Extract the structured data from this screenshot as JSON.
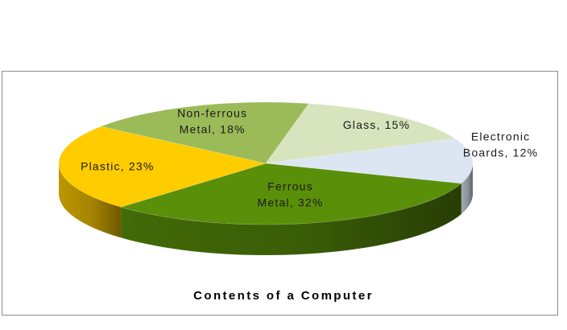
{
  "chart_data": {
    "type": "pie",
    "title": "Contents of a Computer",
    "slices": [
      {
        "label": "Electronic Boards, 12%",
        "name": "Electronic Boards",
        "value": 12,
        "color": "#dce6f2"
      },
      {
        "label": "Ferrous Metal, 32%",
        "name": "Ferrous Metal",
        "value": 32,
        "color": "#5a8f0a"
      },
      {
        "label": "Plastic, 23%",
        "name": "Plastic",
        "value": 23,
        "color": "#ffcc00"
      },
      {
        "label": "Non-ferrous Metal, 18%",
        "name": "Non-ferrous Metal",
        "value": 18,
        "color": "#9bbb59"
      },
      {
        "label": "Glass, 15%",
        "name": "Glass",
        "value": 15,
        "color": "#d7e4bd"
      }
    ],
    "label_lines": [
      [
        "Electronic",
        "Boards, 12%"
      ],
      [
        "Ferrous",
        "Metal, 32%"
      ],
      [
        "Plastic, 23%"
      ],
      [
        "Non-ferrous",
        "Metal, 18%"
      ],
      [
        "Glass, 15%"
      ]
    ],
    "style": "3d-tilted",
    "legend": "none"
  }
}
